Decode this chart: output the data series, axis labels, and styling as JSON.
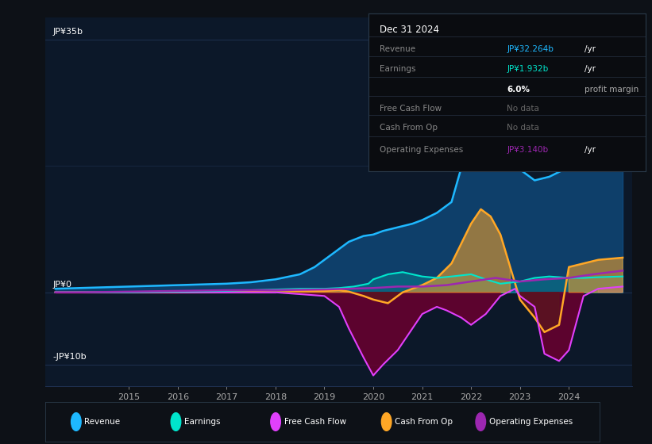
{
  "bg_color": "#0d1117",
  "plot_bg_color": "#0c1829",
  "grid_color": "#1e3050",
  "y_label_35b": "JP¥35b",
  "y_label_0": "JP¥0",
  "y_label_neg10b": "-JP¥10b",
  "x_ticks": [
    2015,
    2016,
    2017,
    2018,
    2019,
    2020,
    2021,
    2022,
    2023,
    2024
  ],
  "ylim": [
    -13,
    38
  ],
  "xlim": [
    2013.3,
    2025.3
  ],
  "revenue_color": "#1eb8ff",
  "earnings_color": "#00e5cc",
  "fcf_color": "#e040fb",
  "cashfromop_color": "#ffa726",
  "opex_color": "#9c27b0",
  "revenue_fill_color": "#0d4a7a",
  "revenue_x": [
    2013.5,
    2014.0,
    2014.5,
    2015.0,
    2015.5,
    2016.0,
    2016.5,
    2017.0,
    2017.5,
    2018.0,
    2018.5,
    2018.8,
    2019.0,
    2019.2,
    2019.5,
    2019.8,
    2020.0,
    2020.2,
    2020.5,
    2020.8,
    2021.0,
    2021.3,
    2021.6,
    2022.0,
    2022.2,
    2022.4,
    2022.6,
    2022.8,
    2023.0,
    2023.3,
    2023.6,
    2023.9,
    2024.0,
    2024.2,
    2024.5,
    2024.8,
    2025.1
  ],
  "revenue_y": [
    0.5,
    0.6,
    0.7,
    0.8,
    0.9,
    1.0,
    1.1,
    1.2,
    1.4,
    1.8,
    2.5,
    3.5,
    4.5,
    5.5,
    7.0,
    7.8,
    8.0,
    8.5,
    9.0,
    9.5,
    10.0,
    11.0,
    12.5,
    22.0,
    26.0,
    27.5,
    25.0,
    19.0,
    17.0,
    15.5,
    16.0,
    17.0,
    18.0,
    20.0,
    26.0,
    32.0,
    35.0
  ],
  "earnings_x": [
    2013.5,
    2014.0,
    2015.0,
    2016.0,
    2017.0,
    2017.5,
    2018.0,
    2018.5,
    2019.0,
    2019.3,
    2019.6,
    2019.9,
    2020.0,
    2020.3,
    2020.6,
    2021.0,
    2021.3,
    2021.6,
    2022.0,
    2022.3,
    2022.6,
    2023.0,
    2023.3,
    2023.6,
    2024.0,
    2024.3,
    2024.6,
    2025.1
  ],
  "earnings_y": [
    0.0,
    0.0,
    0.0,
    0.1,
    0.2,
    0.3,
    0.4,
    0.5,
    0.5,
    0.6,
    0.8,
    1.2,
    1.8,
    2.5,
    2.8,
    2.2,
    2.0,
    2.2,
    2.5,
    1.8,
    1.2,
    1.5,
    2.0,
    2.2,
    2.0,
    2.0,
    2.1,
    2.2
  ],
  "fcf_x": [
    2013.5,
    2014.0,
    2015.0,
    2016.0,
    2017.0,
    2018.0,
    2019.0,
    2019.3,
    2019.5,
    2019.8,
    2020.0,
    2020.2,
    2020.5,
    2020.8,
    2021.0,
    2021.3,
    2021.5,
    2021.8,
    2022.0,
    2022.3,
    2022.6,
    2022.9,
    2023.0,
    2023.3,
    2023.5,
    2023.8,
    2024.0,
    2024.3,
    2024.6,
    2025.1
  ],
  "fcf_y": [
    0.0,
    0.0,
    0.0,
    0.0,
    0.0,
    0.0,
    -0.5,
    -2.0,
    -5.0,
    -9.0,
    -11.5,
    -10.0,
    -8.0,
    -5.0,
    -3.0,
    -2.0,
    -2.5,
    -3.5,
    -4.5,
    -3.0,
    -0.5,
    0.5,
    -0.5,
    -2.0,
    -8.5,
    -9.5,
    -8.0,
    -0.5,
    0.5,
    0.8
  ],
  "cashop_x": [
    2013.5,
    2014.0,
    2015.0,
    2016.0,
    2017.0,
    2017.5,
    2018.0,
    2018.5,
    2019.0,
    2019.3,
    2019.5,
    2019.8,
    2020.0,
    2020.3,
    2020.6,
    2021.0,
    2021.3,
    2021.6,
    2022.0,
    2022.2,
    2022.4,
    2022.6,
    2022.8,
    2023.0,
    2023.3,
    2023.5,
    2023.8,
    2024.0,
    2024.3,
    2024.6,
    2025.1
  ],
  "cashop_y": [
    0.0,
    0.0,
    0.0,
    0.0,
    0.1,
    0.2,
    0.3,
    0.2,
    0.2,
    0.3,
    0.1,
    -0.5,
    -1.0,
    -1.5,
    0.0,
    1.0,
    2.0,
    4.0,
    9.5,
    11.5,
    10.5,
    8.0,
    3.5,
    -1.0,
    -3.5,
    -5.5,
    -4.5,
    3.5,
    4.0,
    4.5,
    4.8
  ],
  "opex_x": [
    2013.5,
    2014.0,
    2015.0,
    2016.0,
    2017.0,
    2018.0,
    2019.0,
    2019.5,
    2020.0,
    2020.5,
    2021.0,
    2021.5,
    2022.0,
    2022.5,
    2023.0,
    2023.5,
    2024.0,
    2024.5,
    2025.1
  ],
  "opex_y": [
    0.0,
    0.0,
    0.1,
    0.2,
    0.3,
    0.3,
    0.4,
    0.5,
    0.6,
    0.8,
    0.8,
    1.0,
    1.5,
    2.0,
    1.5,
    1.8,
    2.0,
    2.5,
    3.0
  ],
  "legend_labels": [
    "Revenue",
    "Earnings",
    "Free Cash Flow",
    "Cash From Op",
    "Operating Expenses"
  ],
  "legend_colors": [
    "#1eb8ff",
    "#00e5cc",
    "#e040fb",
    "#ffa726",
    "#9c27b0"
  ],
  "tooltip_title": "Dec 31 2024",
  "tooltip_rows": [
    {
      "label": "Revenue",
      "value": "JP¥32.264b",
      "unit": "/yr",
      "value_color": "#1eb8ff",
      "gray": false
    },
    {
      "label": "Earnings",
      "value": "JP¥1.932b",
      "unit": "/yr",
      "value_color": "#00e5cc",
      "gray": false
    },
    {
      "label": "",
      "value": "6.0%",
      "unit": "profit margin",
      "value_color": "#ffffff",
      "gray": false,
      "bold_value": true
    },
    {
      "label": "Free Cash Flow",
      "value": "No data",
      "unit": "",
      "value_color": "#666666",
      "gray": true
    },
    {
      "label": "Cash From Op",
      "value": "No data",
      "unit": "",
      "value_color": "#666666",
      "gray": true
    },
    {
      "label": "Operating Expenses",
      "value": "JP¥3.140b",
      "unit": "/yr",
      "value_color": "#9c27b0",
      "gray": false
    }
  ]
}
